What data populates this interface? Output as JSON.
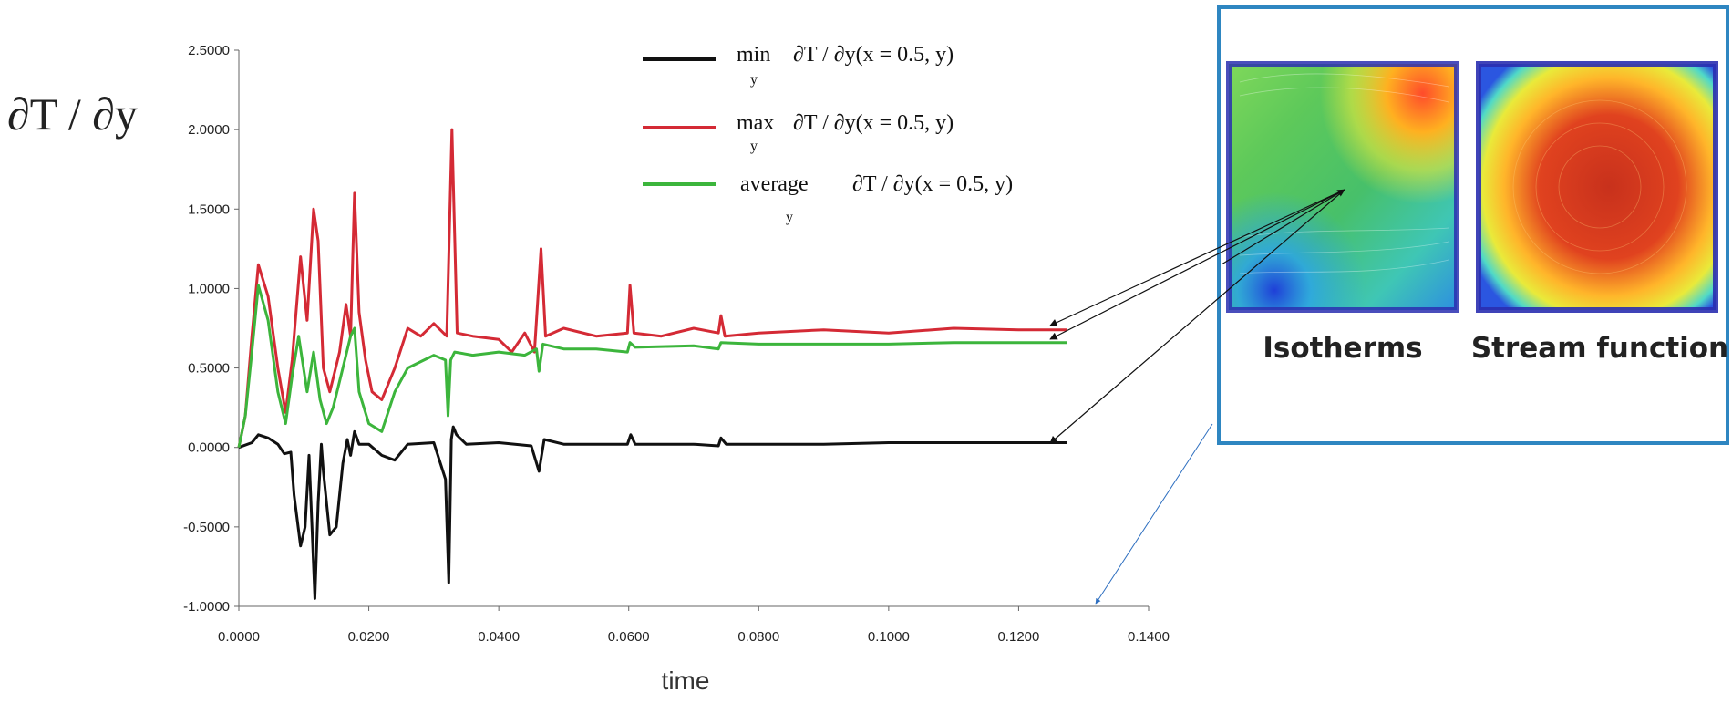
{
  "chart_data": {
    "type": "line",
    "title": "",
    "xlabel": "time",
    "ylabel": "∂T / ∂y",
    "xlim": [
      0,
      0.14
    ],
    "ylim": [
      -1.0,
      2.5
    ],
    "x_ticks": [
      "0.0000",
      "0.0200",
      "0.0400",
      "0.0600",
      "0.0800",
      "0.1000",
      "0.1200",
      "0.1400"
    ],
    "y_ticks": [
      "2.5000",
      "2.0000",
      "1.5000",
      "1.0000",
      "0.5000",
      "0.0000",
      "-0.5000",
      "-1.0000"
    ],
    "grid": false,
    "legend_position": "top-right",
    "series": [
      {
        "legend_main": "min",
        "legend_sub": "y",
        "legend_rest": "∂T / ∂y(x = 0.5, y)",
        "color": "#111111",
        "points": [
          [
            0,
            0
          ],
          [
            0.002,
            0.03
          ],
          [
            0.003,
            0.08
          ],
          [
            0.0045,
            0.06
          ],
          [
            0.006,
            0.02
          ],
          [
            0.007,
            -0.04
          ],
          [
            0.008,
            -0.03
          ],
          [
            0.0085,
            -0.3
          ],
          [
            0.0095,
            -0.62
          ],
          [
            0.0102,
            -0.5
          ],
          [
            0.0108,
            -0.05
          ],
          [
            0.0113,
            -0.55
          ],
          [
            0.0117,
            -0.95
          ],
          [
            0.0122,
            -0.35
          ],
          [
            0.0127,
            0.02
          ],
          [
            0.013,
            -0.15
          ],
          [
            0.014,
            -0.55
          ],
          [
            0.015,
            -0.5
          ],
          [
            0.016,
            -0.1
          ],
          [
            0.0167,
            0.05
          ],
          [
            0.0172,
            -0.05
          ],
          [
            0.0178,
            0.1
          ],
          [
            0.0185,
            0.02
          ],
          [
            0.02,
            0.02
          ],
          [
            0.022,
            -0.05
          ],
          [
            0.024,
            -0.08
          ],
          [
            0.026,
            0.02
          ],
          [
            0.03,
            0.03
          ],
          [
            0.0318,
            -0.2
          ],
          [
            0.0323,
            -0.85
          ],
          [
            0.0327,
            0.05
          ],
          [
            0.033,
            0.13
          ],
          [
            0.0335,
            0.08
          ],
          [
            0.035,
            0.02
          ],
          [
            0.04,
            0.03
          ],
          [
            0.045,
            0.01
          ],
          [
            0.0462,
            -0.15
          ],
          [
            0.047,
            0.05
          ],
          [
            0.05,
            0.02
          ],
          [
            0.055,
            0.02
          ],
          [
            0.0598,
            0.02
          ],
          [
            0.0603,
            0.08
          ],
          [
            0.061,
            0.02
          ],
          [
            0.07,
            0.02
          ],
          [
            0.0738,
            0.01
          ],
          [
            0.0742,
            0.06
          ],
          [
            0.075,
            0.02
          ],
          [
            0.09,
            0.02
          ],
          [
            0.1,
            0.03
          ],
          [
            0.11,
            0.03
          ],
          [
            0.12,
            0.03
          ],
          [
            0.1275,
            0.03
          ]
        ]
      },
      {
        "legend_main": "max",
        "legend_sub": "y",
        "legend_rest": "∂T / ∂y(x = 0.5, y)",
        "color": "#d42a35",
        "points": [
          [
            0,
            0
          ],
          [
            0.001,
            0.2
          ],
          [
            0.002,
            0.7
          ],
          [
            0.003,
            1.15
          ],
          [
            0.0045,
            0.95
          ],
          [
            0.006,
            0.5
          ],
          [
            0.0072,
            0.22
          ],
          [
            0.0082,
            0.55
          ],
          [
            0.0095,
            1.2
          ],
          [
            0.0105,
            0.8
          ],
          [
            0.0115,
            1.5
          ],
          [
            0.0122,
            1.3
          ],
          [
            0.013,
            0.5
          ],
          [
            0.014,
            0.35
          ],
          [
            0.0155,
            0.6
          ],
          [
            0.0165,
            0.9
          ],
          [
            0.0172,
            0.7
          ],
          [
            0.0178,
            1.6
          ],
          [
            0.0185,
            0.85
          ],
          [
            0.0195,
            0.55
          ],
          [
            0.0205,
            0.35
          ],
          [
            0.022,
            0.3
          ],
          [
            0.024,
            0.5
          ],
          [
            0.026,
            0.75
          ],
          [
            0.028,
            0.7
          ],
          [
            0.03,
            0.78
          ],
          [
            0.032,
            0.7
          ],
          [
            0.0328,
            2.0
          ],
          [
            0.0336,
            0.72
          ],
          [
            0.036,
            0.7
          ],
          [
            0.04,
            0.68
          ],
          [
            0.042,
            0.6
          ],
          [
            0.044,
            0.72
          ],
          [
            0.0455,
            0.6
          ],
          [
            0.0465,
            1.25
          ],
          [
            0.0472,
            0.7
          ],
          [
            0.05,
            0.75
          ],
          [
            0.055,
            0.7
          ],
          [
            0.0598,
            0.72
          ],
          [
            0.0602,
            1.02
          ],
          [
            0.0608,
            0.72
          ],
          [
            0.065,
            0.7
          ],
          [
            0.07,
            0.75
          ],
          [
            0.0738,
            0.72
          ],
          [
            0.0742,
            0.83
          ],
          [
            0.0748,
            0.7
          ],
          [
            0.08,
            0.72
          ],
          [
            0.09,
            0.74
          ],
          [
            0.1,
            0.72
          ],
          [
            0.11,
            0.75
          ],
          [
            0.12,
            0.74
          ],
          [
            0.1275,
            0.74
          ]
        ]
      },
      {
        "legend_main": "average",
        "legend_sub": "y",
        "legend_rest": "∂T / ∂y(x = 0.5, y)",
        "color": "#3cb53c",
        "points": [
          [
            0,
            0
          ],
          [
            0.001,
            0.2
          ],
          [
            0.002,
            0.6
          ],
          [
            0.003,
            1.02
          ],
          [
            0.0045,
            0.8
          ],
          [
            0.006,
            0.35
          ],
          [
            0.0072,
            0.15
          ],
          [
            0.0082,
            0.45
          ],
          [
            0.0092,
            0.7
          ],
          [
            0.0105,
            0.35
          ],
          [
            0.0115,
            0.6
          ],
          [
            0.0125,
            0.3
          ],
          [
            0.0135,
            0.15
          ],
          [
            0.0145,
            0.25
          ],
          [
            0.016,
            0.5
          ],
          [
            0.0172,
            0.7
          ],
          [
            0.0178,
            0.75
          ],
          [
            0.0185,
            0.35
          ],
          [
            0.02,
            0.15
          ],
          [
            0.022,
            0.1
          ],
          [
            0.024,
            0.35
          ],
          [
            0.026,
            0.5
          ],
          [
            0.03,
            0.58
          ],
          [
            0.0318,
            0.55
          ],
          [
            0.0322,
            0.2
          ],
          [
            0.0326,
            0.55
          ],
          [
            0.0332,
            0.6
          ],
          [
            0.036,
            0.58
          ],
          [
            0.04,
            0.6
          ],
          [
            0.044,
            0.58
          ],
          [
            0.0458,
            0.62
          ],
          [
            0.0462,
            0.48
          ],
          [
            0.0468,
            0.65
          ],
          [
            0.05,
            0.62
          ],
          [
            0.055,
            0.62
          ],
          [
            0.0598,
            0.6
          ],
          [
            0.0602,
            0.66
          ],
          [
            0.061,
            0.63
          ],
          [
            0.07,
            0.64
          ],
          [
            0.0738,
            0.62
          ],
          [
            0.0742,
            0.66
          ],
          [
            0.08,
            0.65
          ],
          [
            0.09,
            0.65
          ],
          [
            0.1,
            0.65
          ],
          [
            0.11,
            0.66
          ],
          [
            0.12,
            0.66
          ],
          [
            0.1275,
            0.66
          ]
        ]
      }
    ]
  },
  "inset": {
    "captions": [
      "Isotherms",
      "Stream function"
    ],
    "frame_color": "#2e86c1"
  }
}
